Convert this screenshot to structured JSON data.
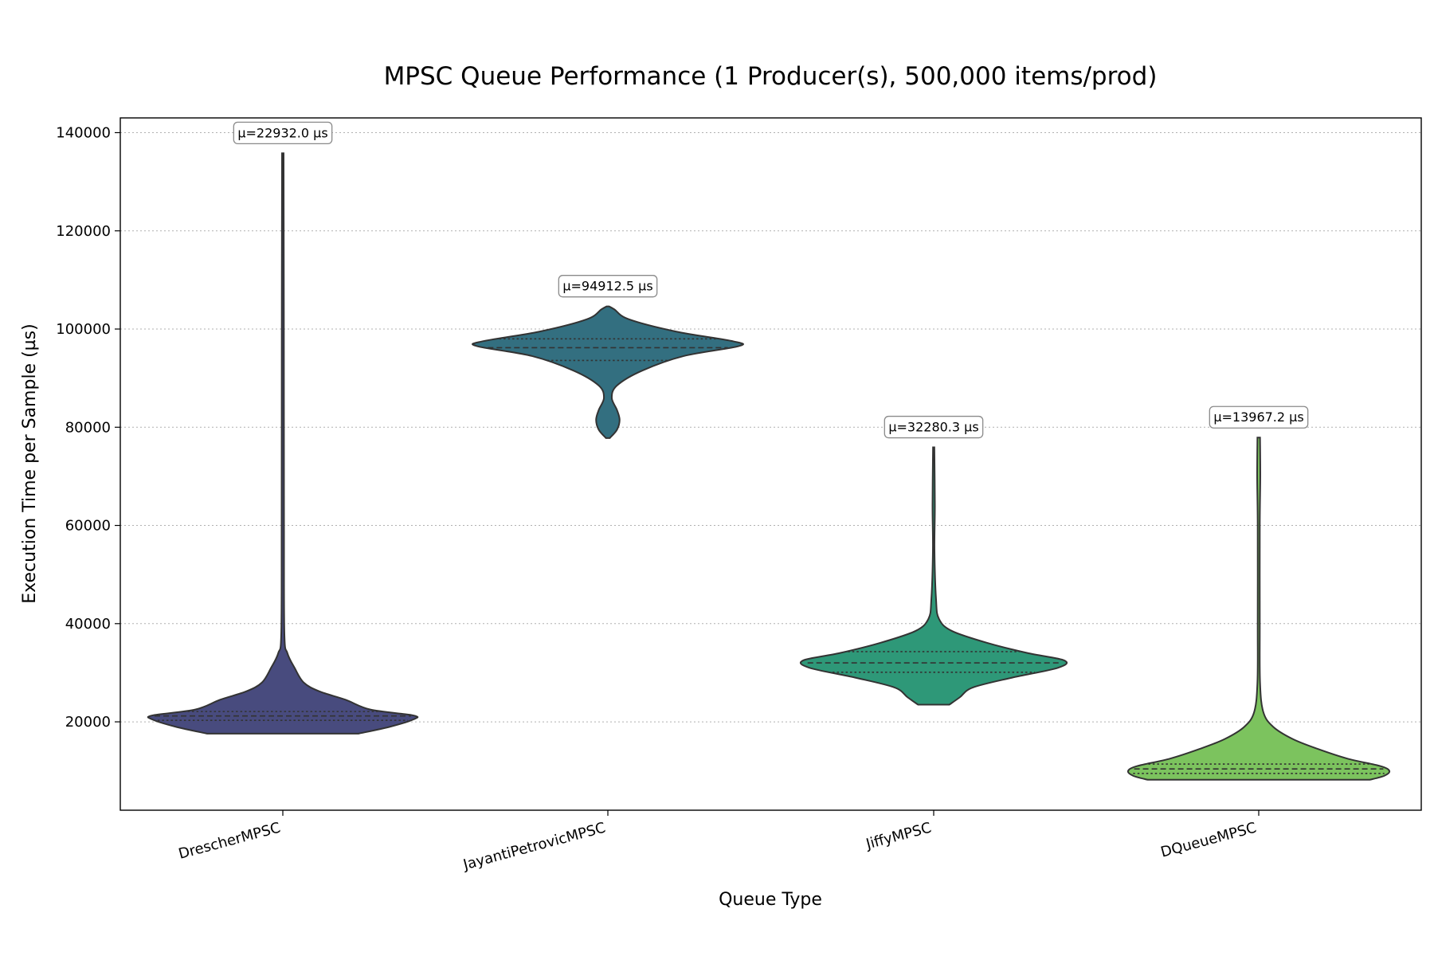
{
  "chart_data": {
    "type": "violin",
    "title": "MPSC Queue Performance (1 Producer(s), 500,000 items/prod)",
    "xlabel": "Queue Type",
    "ylabel": "Execution Time per Sample (µs)",
    "ylim": [
      2000,
      143000
    ],
    "yticks": [
      20000,
      40000,
      60000,
      80000,
      100000,
      120000,
      140000
    ],
    "grid": "y-dotted",
    "categories": [
      "DrescherMPSC",
      "JayantiPetrovicMPSC",
      "JiffyMPSC",
      "DQueueMPSC"
    ],
    "series": [
      {
        "category": "DrescherMPSC",
        "color": "#484b7e",
        "mean_label": "µ=22932.0 µs",
        "min": 17600,
        "max": 135800,
        "q1": 20300,
        "median": 21200,
        "q3": 22100,
        "profile": [
          [
            17600,
            0.58
          ],
          [
            19000,
            0.82
          ],
          [
            20500,
            1.0
          ],
          [
            21300,
            1.0
          ],
          [
            22500,
            0.67
          ],
          [
            24500,
            0.48
          ],
          [
            26200,
            0.28
          ],
          [
            28000,
            0.16
          ],
          [
            31000,
            0.09
          ],
          [
            34000,
            0.035
          ],
          [
            38000,
            0.012
          ],
          [
            60000,
            0.009
          ],
          [
            100000,
            0.008
          ],
          [
            135800,
            0.006
          ]
        ]
      },
      {
        "category": "JayantiPetrovicMPSC",
        "color": "#336f80",
        "mean_label": "µ=94912.5 µs",
        "min": 77800,
        "max": 104600,
        "q1": 93600,
        "median": 96200,
        "q3": 98000,
        "profile": [
          [
            77800,
            0.015
          ],
          [
            79500,
            0.07
          ],
          [
            81500,
            0.09
          ],
          [
            83500,
            0.07
          ],
          [
            86000,
            0.03
          ],
          [
            88500,
            0.07
          ],
          [
            91500,
            0.26
          ],
          [
            94500,
            0.58
          ],
          [
            96500,
            1.0
          ],
          [
            97500,
            0.96
          ],
          [
            99500,
            0.52
          ],
          [
            102000,
            0.16
          ],
          [
            104000,
            0.05
          ],
          [
            104600,
            0.01
          ]
        ]
      },
      {
        "category": "JiffyMPSC",
        "color": "#2e9878",
        "mean_label": "µ=32280.3 µs",
        "min": 23500,
        "max": 75900,
        "q1": 30100,
        "median": 32000,
        "q3": 34300,
        "profile": [
          [
            23500,
            0.12
          ],
          [
            25000,
            0.2
          ],
          [
            27000,
            0.3
          ],
          [
            29000,
            0.6
          ],
          [
            31000,
            0.95
          ],
          [
            32500,
            1.0
          ],
          [
            34000,
            0.72
          ],
          [
            36000,
            0.42
          ],
          [
            38500,
            0.14
          ],
          [
            41000,
            0.04
          ],
          [
            45000,
            0.018
          ],
          [
            55000,
            0.006
          ],
          [
            64000,
            0.009
          ],
          [
            75900,
            0.005
          ]
        ]
      },
      {
        "category": "DQueueMPSC",
        "color": "#7cc35e",
        "mean_label": "µ=13967.2 µs",
        "min": 8200,
        "max": 77900,
        "q1": 9500,
        "median": 10400,
        "q3": 11400,
        "profile": [
          [
            8200,
            0.85
          ],
          [
            9000,
            0.96
          ],
          [
            10000,
            1.0
          ],
          [
            11000,
            0.93
          ],
          [
            12500,
            0.68
          ],
          [
            14500,
            0.45
          ],
          [
            16500,
            0.26
          ],
          [
            19000,
            0.11
          ],
          [
            22000,
            0.035
          ],
          [
            28000,
            0.01
          ],
          [
            40000,
            0.008
          ],
          [
            60000,
            0.008
          ],
          [
            70000,
            0.012
          ],
          [
            77900,
            0.01
          ]
        ]
      }
    ]
  }
}
